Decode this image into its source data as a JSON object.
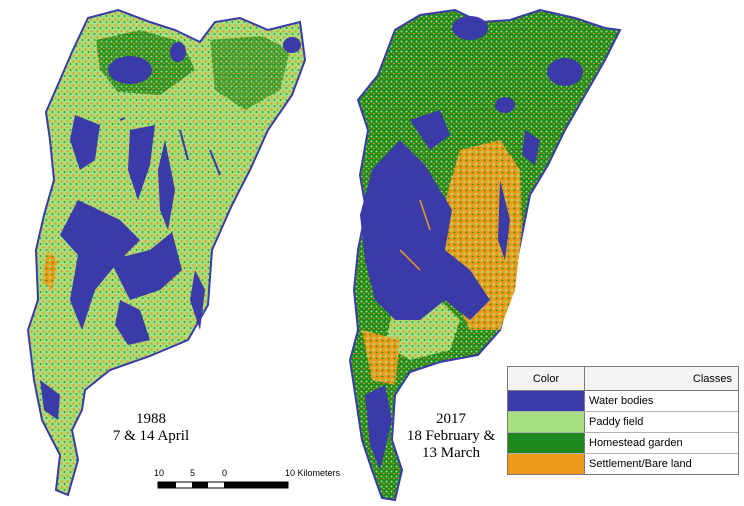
{
  "maps": [
    {
      "year": "1988",
      "dates": "7 & 14 April"
    },
    {
      "year": "2017",
      "dates_line1": "18 February &",
      "dates_line2": "13 March"
    }
  ],
  "legend": {
    "header_color": "Color",
    "header_classes": "Classes",
    "classes": [
      {
        "label": "Water bodies",
        "color": "#3a3aa8"
      },
      {
        "label": "Paddy field",
        "color": "#a5df7f"
      },
      {
        "label": "Homestead garden",
        "color": "#1e8a1e"
      },
      {
        "label": "Settlement/Bare land",
        "color": "#f09a1a"
      }
    ]
  },
  "scale": {
    "ticks": [
      "10",
      "5",
      "0",
      "10 Kilometers"
    ]
  }
}
